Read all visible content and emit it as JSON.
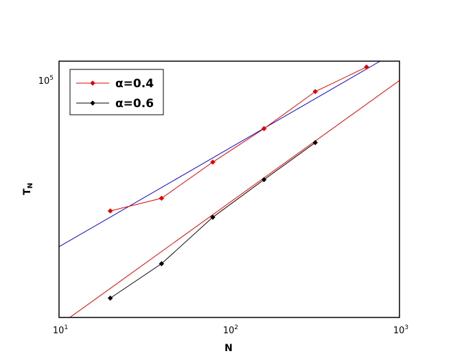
{
  "chart_data": {
    "type": "line",
    "title": "",
    "xlabel": "N",
    "ylabel": "T",
    "ylabel_sub": "N",
    "x_scale": "log",
    "y_scale": "log",
    "xlim": [
      10,
      1000
    ],
    "ylim": [
      4000,
      130000
    ],
    "x_ticks": [
      {
        "value": 10,
        "base": "10",
        "exp": "1"
      },
      {
        "value": 100,
        "base": "10",
        "exp": "2"
      },
      {
        "value": 1000,
        "base": "10",
        "exp": "3"
      }
    ],
    "y_ticks": [
      {
        "value": 100000,
        "base": "10",
        "exp": "5"
      }
    ],
    "grid": false,
    "legend_position": "top-left",
    "series": [
      {
        "name": "α=0.4",
        "color": "#e00000",
        "marker": "diamond",
        "x": [
          20,
          40,
          80,
          160,
          320,
          640
        ],
        "y": [
          17000,
          20200,
          33000,
          52000,
          86000,
          120000
        ]
      },
      {
        "name": "α=0.6",
        "color": "#000000",
        "marker": "diamond",
        "x": [
          20,
          40,
          80,
          160,
          320
        ],
        "y": [
          5200,
          8300,
          15600,
          26000,
          43000
        ]
      }
    ],
    "fit_lines": [
      {
        "color": "#0000c8",
        "x": [
          10,
          770
        ],
        "y": [
          10450,
          130000
        ]
      },
      {
        "color": "#e00000",
        "x": [
          10,
          1000
        ],
        "y": [
          3600,
          100000
        ]
      }
    ]
  }
}
